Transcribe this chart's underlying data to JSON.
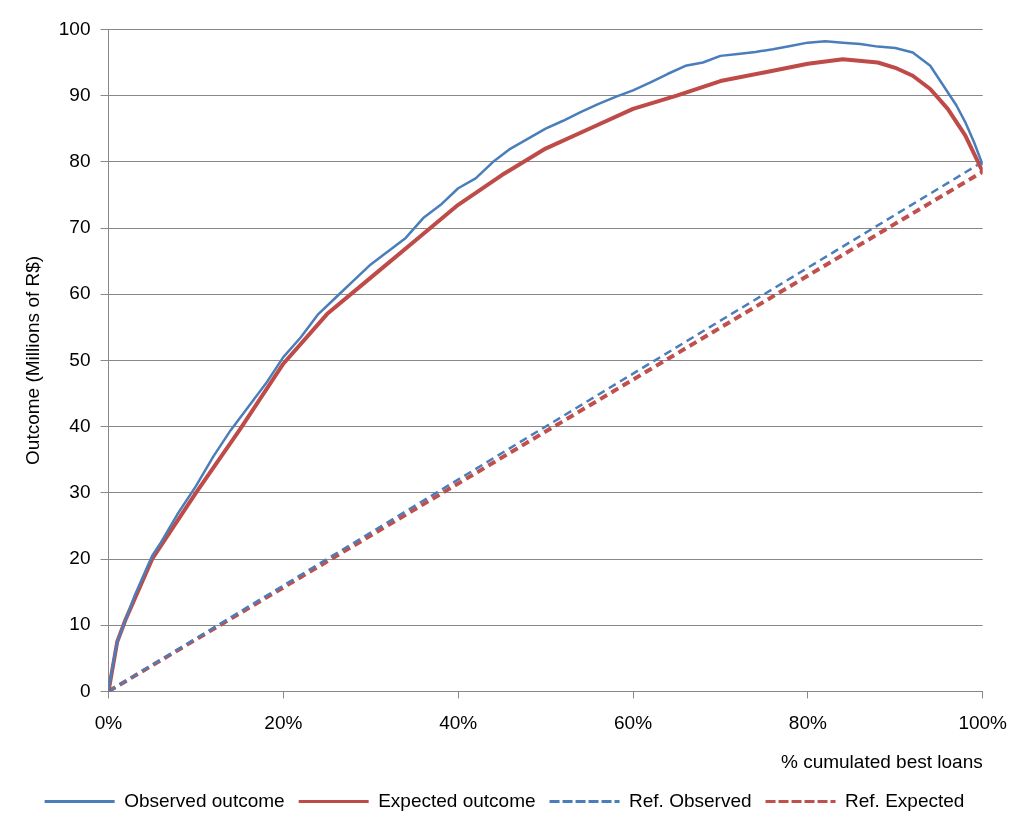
{
  "chart_data": {
    "type": "line",
    "xlabel": "% cumulated best loans",
    "ylabel": "Outcome (Millions of R$)",
    "xlim": [
      0,
      100
    ],
    "xticks": [
      {
        "value": 0,
        "label": "0%"
      },
      {
        "value": 20,
        "label": "20%"
      },
      {
        "value": 40,
        "label": "40%"
      },
      {
        "value": 60,
        "label": "60%"
      },
      {
        "value": 80,
        "label": "80%"
      },
      {
        "value": 100,
        "label": "100%"
      }
    ],
    "ylim": [
      0,
      100
    ],
    "yticks": [
      0,
      10,
      20,
      30,
      40,
      50,
      60,
      70,
      80,
      90,
      100
    ],
    "grid": "y",
    "legend": "bottom",
    "marker": "none",
    "series": [
      {
        "name": "Observed outcome",
        "color": "#4a7ebb",
        "line_style": "solid",
        "x": [
          0,
          0.5,
          1,
          2,
          3,
          4,
          5,
          6,
          8,
          10,
          12,
          14,
          16,
          18,
          20,
          22,
          24,
          26,
          28,
          30,
          32,
          34,
          36,
          38,
          40,
          42,
          44,
          46,
          48,
          50,
          52,
          54,
          56,
          58,
          60,
          62,
          64,
          66,
          68,
          70,
          72,
          74,
          76,
          78,
          80,
          82,
          84,
          86,
          88,
          90,
          92,
          94,
          96,
          97,
          98,
          99,
          100
        ],
        "values": [
          0,
          4,
          7.5,
          11,
          14.5,
          17.5,
          20.5,
          22.5,
          27,
          31,
          35.5,
          39.5,
          43,
          46.5,
          50.5,
          53.5,
          57,
          59.5,
          62,
          64.5,
          66.5,
          68.5,
          71.5,
          73.5,
          76,
          77.5,
          80,
          82,
          83.5,
          85,
          86.2,
          87.5,
          88.7,
          89.8,
          90.8,
          92,
          93.3,
          94.5,
          95,
          96,
          96.3,
          96.6,
          97,
          97.5,
          98,
          98.2,
          98,
          97.8,
          97.4,
          97.2,
          96.5,
          94.5,
          90.5,
          88.5,
          86,
          83,
          79.5
        ]
      },
      {
        "name": "Expected outcome",
        "color": "#be4b48",
        "line_style": "solid",
        "x": [
          0,
          1,
          2,
          5,
          10,
          15,
          20,
          25,
          30,
          35,
          40,
          45,
          50,
          55,
          60,
          65,
          70,
          75,
          80,
          84,
          88,
          90,
          92,
          94,
          96,
          98,
          100
        ],
        "values": [
          0,
          7.5,
          11,
          20,
          30,
          39.5,
          49.5,
          57,
          62.5,
          68,
          73.5,
          78,
          82,
          85,
          88,
          90,
          92.2,
          93.5,
          94.8,
          95.5,
          95,
          94.2,
          93,
          91,
          88,
          84,
          78.5
        ]
      },
      {
        "name": "Ref. Observed",
        "color": "#4a7ebb",
        "line_style": "dashed",
        "x": [
          0,
          100
        ],
        "values": [
          0,
          80
        ]
      },
      {
        "name": "Ref. Expected",
        "color": "#c0504d",
        "line_style": "dashed",
        "x": [
          0,
          100
        ],
        "values": [
          0,
          78.5
        ]
      }
    ]
  }
}
